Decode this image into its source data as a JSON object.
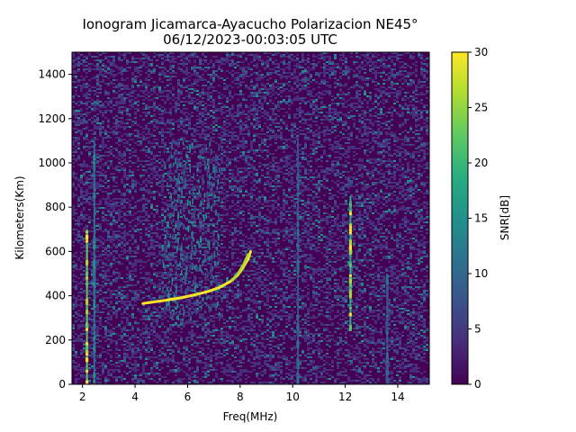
{
  "chart_data": {
    "type": "heatmap",
    "title": "Ionogram Jicamarca-Ayacucho Polarizacion NE45°",
    "subtitle": "06/12/2023-00:03:05 UTC",
    "xlabel": "Freq(MHz)",
    "ylabel": "Kilometers(Km)",
    "xlim": [
      1.6,
      15.2
    ],
    "ylim": [
      0,
      1500
    ],
    "xticks": [
      2,
      4,
      6,
      8,
      10,
      12,
      14
    ],
    "yticks": [
      0,
      200,
      400,
      600,
      800,
      1000,
      1200,
      1400
    ],
    "colorbar": {
      "label": "SNR[dB]",
      "colormap": "viridis",
      "range": [
        0,
        30
      ],
      "ticks": [
        0,
        5,
        10,
        15,
        20,
        25,
        30
      ]
    },
    "traces": [
      {
        "points": [
          [
            4.3,
            365
          ],
          [
            4.8,
            373
          ],
          [
            5.3,
            382
          ],
          [
            5.8,
            392
          ],
          [
            6.3,
            405
          ],
          [
            6.8,
            420
          ],
          [
            7.2,
            437
          ],
          [
            7.6,
            462
          ],
          [
            7.9,
            492
          ],
          [
            8.1,
            525
          ],
          [
            8.3,
            565
          ],
          [
            8.4,
            600
          ]
        ],
        "snr": 30
      },
      {
        "points": [
          [
            7.7,
            470
          ],
          [
            7.95,
            505
          ],
          [
            8.15,
            545
          ],
          [
            8.3,
            585
          ]
        ],
        "snr": 28
      }
    ],
    "vertical_bands": [
      {
        "freq": 2.17,
        "h_range": [
          0,
          700
        ],
        "snr": 30
      },
      {
        "freq": 2.45,
        "h_range": [
          0,
          1100
        ],
        "snr": 15
      },
      {
        "freq": 10.2,
        "h_range": [
          0,
          1100
        ],
        "snr": 12
      },
      {
        "freq": 12.2,
        "h_range": [
          250,
          850
        ],
        "snr": 28
      },
      {
        "freq": 13.6,
        "h_range": [
          0,
          500
        ],
        "snr": 10
      }
    ],
    "diffuse_patches": [
      {
        "f_range": [
          5.0,
          7.2
        ],
        "h_range": [
          300,
          1100
        ],
        "snr": 12
      }
    ]
  }
}
